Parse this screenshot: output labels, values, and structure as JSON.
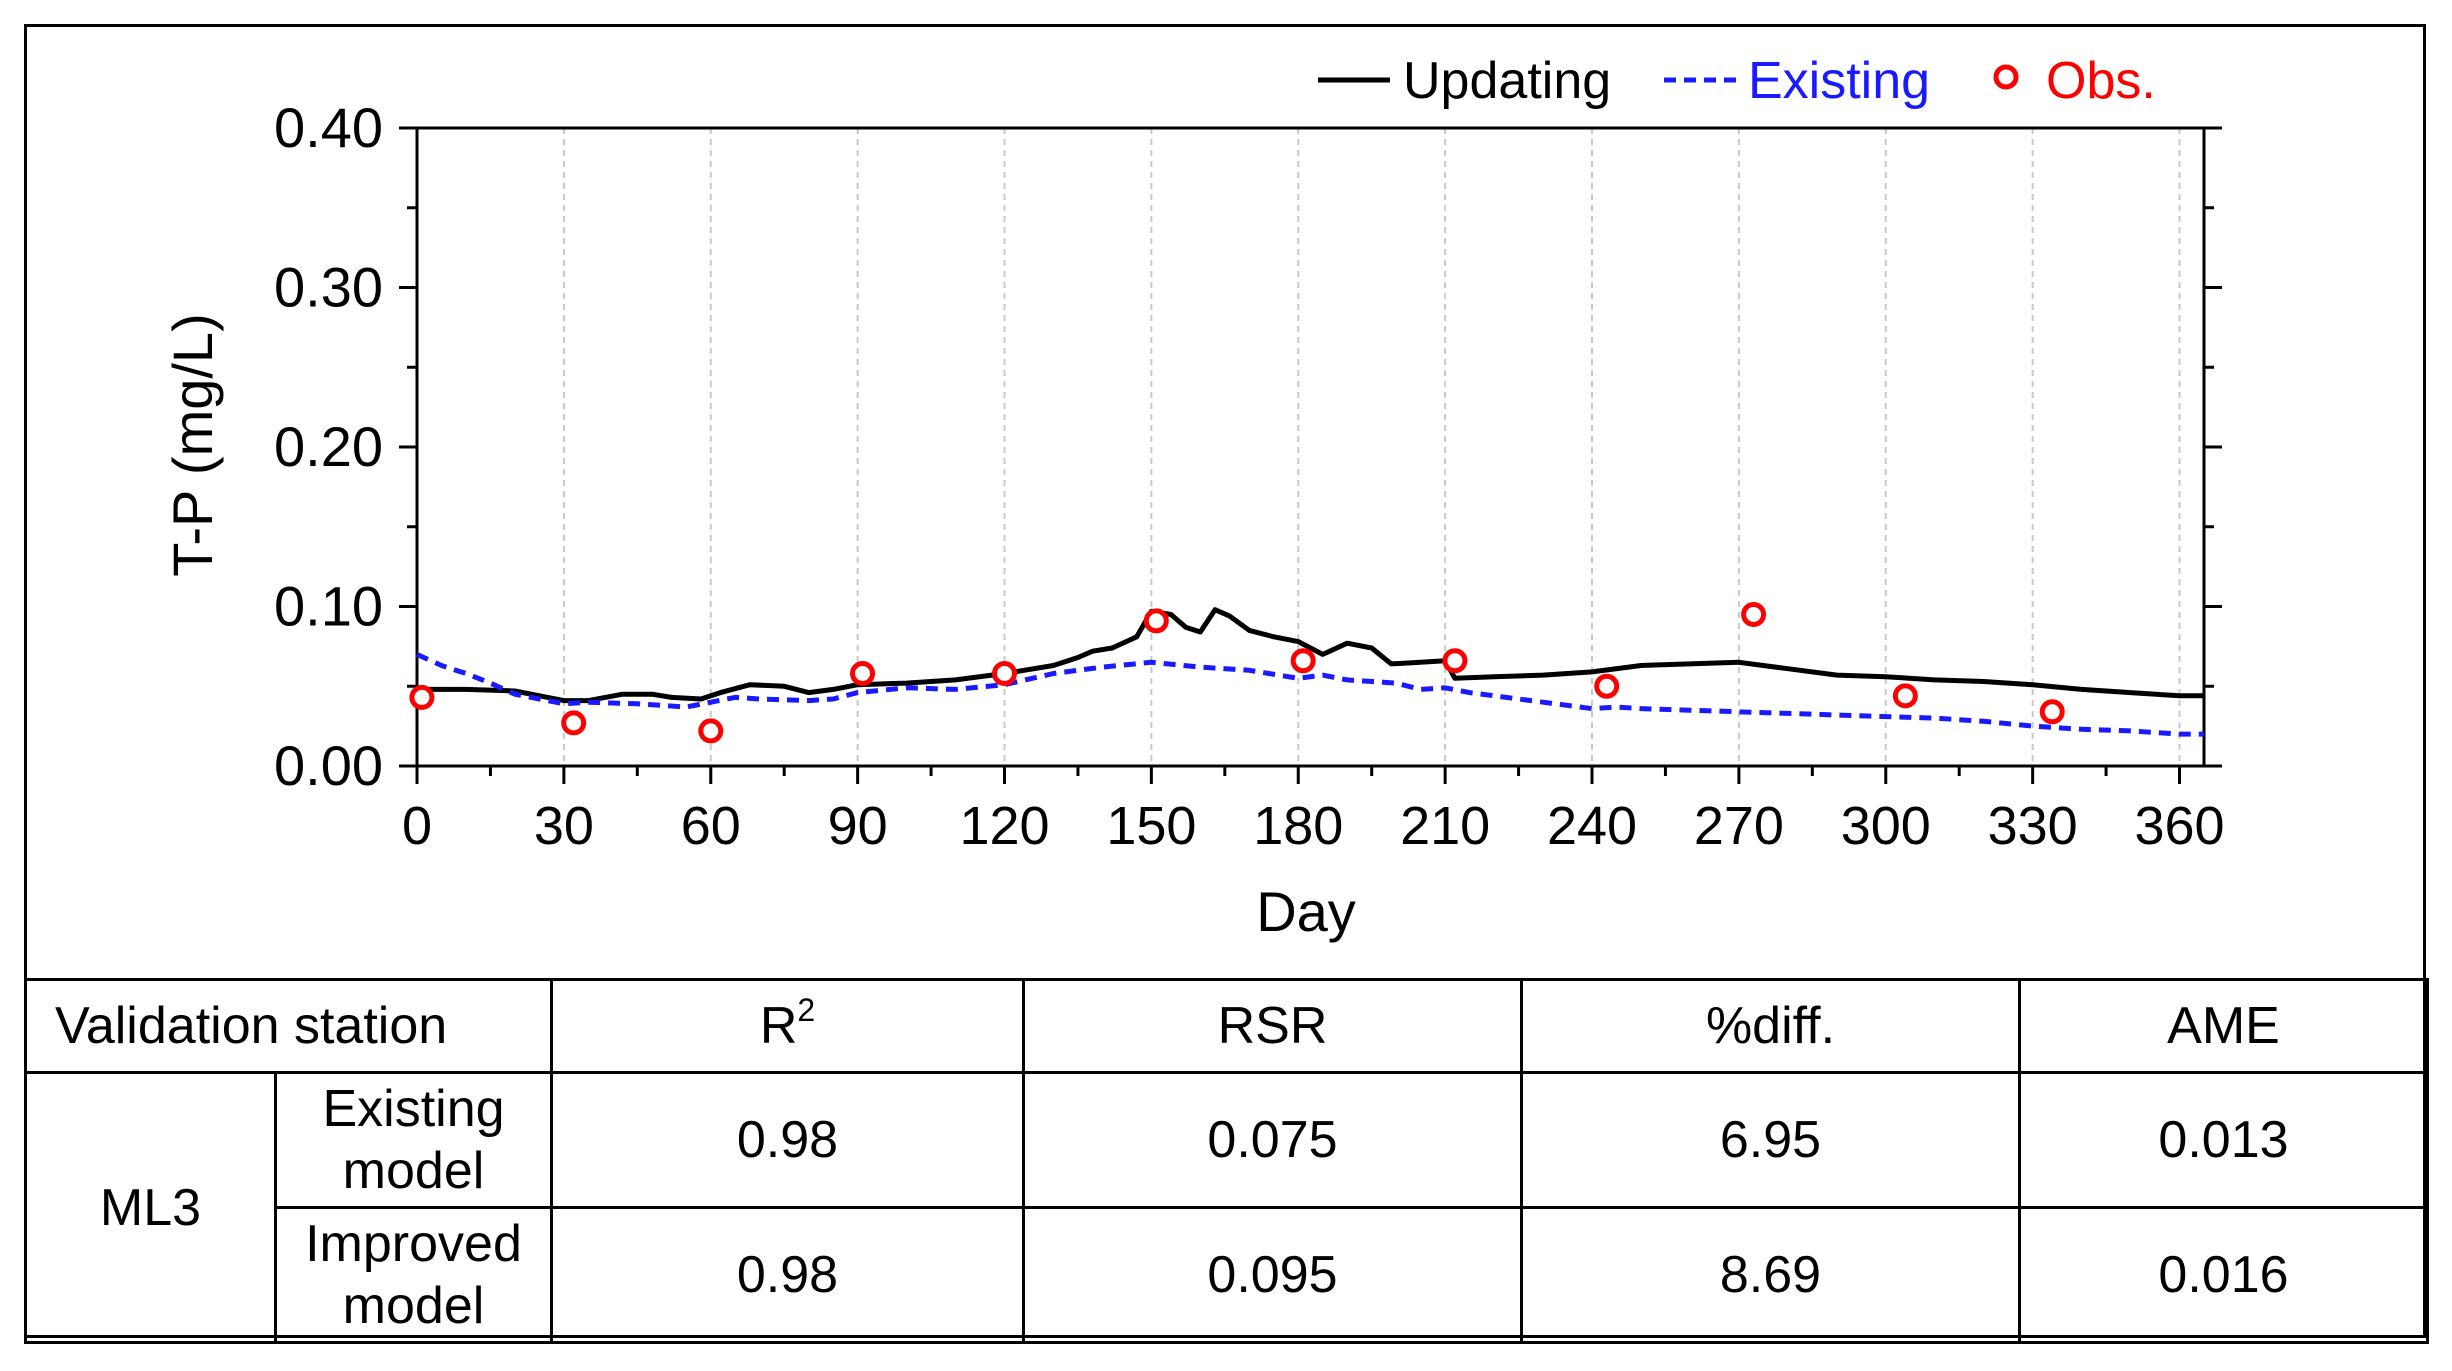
{
  "chart_data": {
    "type": "line",
    "xlabel": "Day",
    "ylabel": "T-P (mg/L)",
    "xlim": [
      0,
      365
    ],
    "ylim": [
      0,
      0.4
    ],
    "x_ticks": [
      0,
      30,
      60,
      90,
      120,
      150,
      180,
      210,
      240,
      270,
      300,
      330,
      360
    ],
    "x_tick_labels": [
      "0",
      "30",
      "60",
      "90",
      "120",
      "150",
      "180",
      "210",
      "240",
      "270",
      "300",
      "330",
      "360"
    ],
    "y_ticks": [
      0,
      0.1,
      0.2,
      0.3,
      0.4
    ],
    "y_tick_labels": [
      "0.00",
      "0.10",
      "0.20",
      "0.30",
      "0.40"
    ],
    "grid": "vertical",
    "legend_position": "top-right",
    "series": [
      {
        "name": "Updating",
        "style": "solid",
        "color": "#000000",
        "points": [
          [
            0,
            0.048
          ],
          [
            10,
            0.048
          ],
          [
            20,
            0.047
          ],
          [
            25,
            0.044
          ],
          [
            30,
            0.041
          ],
          [
            35,
            0.041
          ],
          [
            42,
            0.045
          ],
          [
            48,
            0.045
          ],
          [
            52,
            0.043
          ],
          [
            58,
            0.042
          ],
          [
            62,
            0.046
          ],
          [
            68,
            0.051
          ],
          [
            75,
            0.05
          ],
          [
            80,
            0.046
          ],
          [
            85,
            0.048
          ],
          [
            90,
            0.051
          ],
          [
            100,
            0.052
          ],
          [
            110,
            0.054
          ],
          [
            120,
            0.058
          ],
          [
            130,
            0.063
          ],
          [
            135,
            0.068
          ],
          [
            138,
            0.072
          ],
          [
            142,
            0.074
          ],
          [
            147,
            0.081
          ],
          [
            150,
            0.097
          ],
          [
            154,
            0.095
          ],
          [
            157,
            0.087
          ],
          [
            160,
            0.084
          ],
          [
            163,
            0.098
          ],
          [
            166,
            0.094
          ],
          [
            170,
            0.085
          ],
          [
            175,
            0.081
          ],
          [
            180,
            0.078
          ],
          [
            185,
            0.07
          ],
          [
            190,
            0.077
          ],
          [
            195,
            0.074
          ],
          [
            199,
            0.064
          ],
          [
            205,
            0.065
          ],
          [
            210,
            0.066
          ],
          [
            212,
            0.055
          ],
          [
            220,
            0.056
          ],
          [
            230,
            0.057
          ],
          [
            240,
            0.059
          ],
          [
            250,
            0.063
          ],
          [
            260,
            0.064
          ],
          [
            270,
            0.065
          ],
          [
            280,
            0.061
          ],
          [
            290,
            0.057
          ],
          [
            300,
            0.056
          ],
          [
            310,
            0.054
          ],
          [
            320,
            0.053
          ],
          [
            330,
            0.051
          ],
          [
            340,
            0.048
          ],
          [
            350,
            0.046
          ],
          [
            360,
            0.044
          ],
          [
            365,
            0.044
          ]
        ]
      },
      {
        "name": "Existing",
        "style": "dashed",
        "color": "#1a1aff",
        "points": [
          [
            0,
            0.07
          ],
          [
            5,
            0.063
          ],
          [
            10,
            0.058
          ],
          [
            15,
            0.052
          ],
          [
            20,
            0.045
          ],
          [
            25,
            0.042
          ],
          [
            30,
            0.039
          ],
          [
            35,
            0.04
          ],
          [
            45,
            0.039
          ],
          [
            55,
            0.037
          ],
          [
            60,
            0.04
          ],
          [
            65,
            0.043
          ],
          [
            70,
            0.042
          ],
          [
            80,
            0.041
          ],
          [
            85,
            0.042
          ],
          [
            90,
            0.046
          ],
          [
            100,
            0.049
          ],
          [
            110,
            0.048
          ],
          [
            120,
            0.051
          ],
          [
            130,
            0.058
          ],
          [
            140,
            0.062
          ],
          [
            150,
            0.065
          ],
          [
            160,
            0.062
          ],
          [
            170,
            0.06
          ],
          [
            180,
            0.055
          ],
          [
            185,
            0.057
          ],
          [
            190,
            0.054
          ],
          [
            200,
            0.052
          ],
          [
            205,
            0.048
          ],
          [
            210,
            0.049
          ],
          [
            215,
            0.046
          ],
          [
            220,
            0.044
          ],
          [
            230,
            0.04
          ],
          [
            240,
            0.036
          ],
          [
            245,
            0.037
          ],
          [
            250,
            0.036
          ],
          [
            260,
            0.035
          ],
          [
            270,
            0.034
          ],
          [
            280,
            0.033
          ],
          [
            290,
            0.032
          ],
          [
            300,
            0.031
          ],
          [
            310,
            0.03
          ],
          [
            320,
            0.028
          ],
          [
            330,
            0.025
          ],
          [
            340,
            0.023
          ],
          [
            350,
            0.022
          ],
          [
            360,
            0.02
          ],
          [
            365,
            0.02
          ]
        ]
      },
      {
        "name": "Obs.",
        "style": "markers",
        "color": "#ff0000",
        "points": [
          [
            1,
            0.043
          ],
          [
            32,
            0.027
          ],
          [
            60,
            0.022
          ],
          [
            91,
            0.058
          ],
          [
            120,
            0.058
          ],
          [
            151,
            0.091
          ],
          [
            181,
            0.066
          ],
          [
            212,
            0.066
          ],
          [
            243,
            0.05
          ],
          [
            273,
            0.095
          ],
          [
            304,
            0.044
          ],
          [
            334,
            0.034
          ]
        ]
      }
    ]
  },
  "table": {
    "header": {
      "station": "Validation station",
      "r2_base": "R",
      "r2_sup": "2",
      "rsr": "RSR",
      "diff": "%diff.",
      "ame": "AME"
    },
    "station_name": "ML3",
    "rows": [
      {
        "model_line1": "Existing",
        "model_line2": "model",
        "r2": "0.98",
        "rsr": "0.075",
        "diff": "6.95",
        "ame": "0.013"
      },
      {
        "model_line1": "Improved",
        "model_line2": "model",
        "r2": "0.98",
        "rsr": "0.095",
        "diff": "8.69",
        "ame": "0.016"
      }
    ]
  }
}
